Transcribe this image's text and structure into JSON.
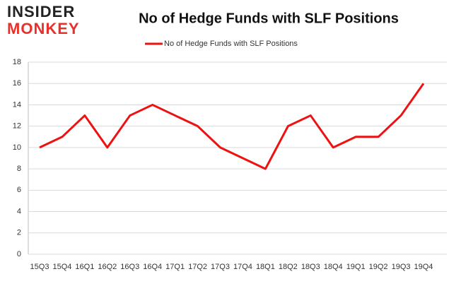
{
  "logo": {
    "line1": "INSIDER",
    "line2": "MONKEY"
  },
  "chart_data": {
    "type": "line",
    "title": "No of Hedge Funds with SLF Positions",
    "categories": [
      "15Q3",
      "15Q4",
      "16Q1",
      "16Q2",
      "16Q3",
      "16Q4",
      "17Q1",
      "17Q2",
      "17Q3",
      "17Q4",
      "18Q1",
      "18Q2",
      "18Q3",
      "18Q4",
      "19Q1",
      "19Q2",
      "19Q3",
      "19Q4"
    ],
    "series": [
      {
        "name": "No of Hedge Funds with SLF Positions",
        "color": "#ee1111",
        "values": [
          10,
          11,
          13,
          10,
          13,
          14,
          13,
          12,
          10,
          9,
          8,
          12,
          13,
          10,
          11,
          11,
          13,
          16
        ]
      }
    ],
    "ylim": [
      0,
      18
    ],
    "yticks": [
      0,
      2,
      4,
      6,
      8,
      10,
      12,
      14,
      16,
      18
    ],
    "grid": true,
    "legend": "top"
  }
}
